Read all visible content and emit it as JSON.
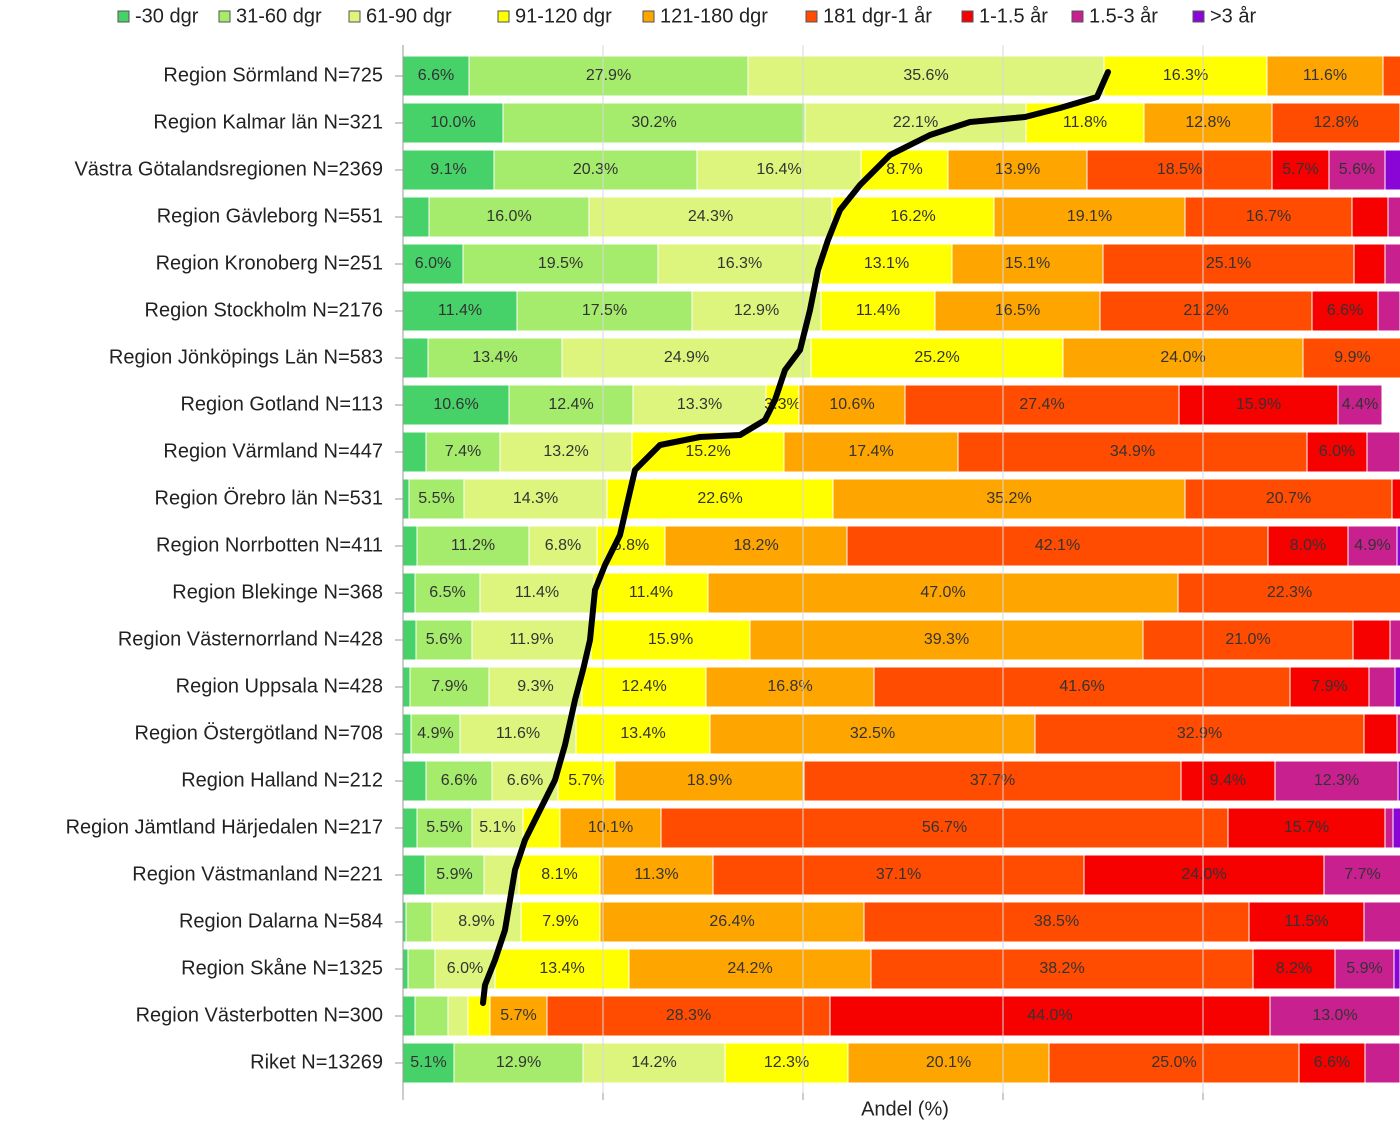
{
  "chart_data": {
    "type": "stacked-bar-horizontal",
    "x_label": "Andel (%)",
    "xlim": [
      0,
      100
    ],
    "xticks": [
      0,
      20,
      40,
      60,
      80,
      100
    ],
    "grid": true,
    "legend": "top",
    "categories": [
      "Region Sörmland N=725",
      "Region Kalmar län N=321",
      "Västra Götalandsregionen N=2369",
      "Region Gävleborg N=551",
      "Region Kronoberg N=251",
      "Region Stockholm N=2176",
      "Region Jönköpings Län N=583",
      "Region Gotland N=113",
      "Region Värmland N=447",
      "Region Örebro län N=531",
      "Region Norrbotten N=411",
      "Region Blekinge N=368",
      "Region Västernorrland N=428",
      "Region Uppsala N=428",
      "Region Östergötland N=708",
      "Region Halland N=212",
      "Region Jämtland Härjedalen N=217",
      "Region Västmanland N=221",
      "Region Dalarna N=584",
      "Region Skåne N=1325",
      "Region Västerbotten N=300",
      "Riket N=13269"
    ],
    "series": [
      {
        "name": "-30 dgr",
        "color": "#46d268",
        "values": [
          6.6,
          10.0,
          9.1,
          2.6,
          6.0,
          11.4,
          2.5,
          10.6,
          2.3,
          0.6,
          1.4,
          1.2,
          1.3,
          0.7,
          0.8,
          2.3,
          1.4,
          2.2,
          0.3,
          0.5,
          1.2,
          5.1
        ],
        "value_labels": [
          "6.6%",
          "10.0%",
          "9.1%",
          null,
          "6.0%",
          "11.4%",
          null,
          "10.6%",
          null,
          null,
          null,
          null,
          null,
          null,
          null,
          null,
          null,
          null,
          null,
          null,
          null,
          "5.1%"
        ]
      },
      {
        "name": "31-60 dgr",
        "color": "#a5ec6c",
        "values": [
          27.9,
          30.2,
          20.3,
          16.0,
          19.5,
          17.5,
          13.4,
          12.4,
          7.4,
          5.5,
          11.2,
          6.5,
          5.6,
          7.9,
          4.9,
          6.6,
          5.5,
          5.9,
          2.6,
          2.7,
          3.3,
          12.9
        ],
        "value_labels": [
          "27.9%",
          "30.2%",
          "20.3%",
          "16.0%",
          "19.5%",
          "17.5%",
          "13.4%",
          "12.4%",
          "7.4%",
          "5.5%",
          "11.2%",
          "6.5%",
          "5.6%",
          "7.9%",
          "4.9%",
          "6.6%",
          "5.5%",
          "5.9%",
          null,
          null,
          null,
          "12.9%"
        ]
      },
      {
        "name": "61-90 dgr",
        "color": "#ddf57c",
        "values": [
          35.6,
          22.1,
          16.4,
          24.3,
          16.3,
          12.9,
          24.9,
          13.3,
          13.2,
          14.3,
          6.8,
          11.4,
          11.9,
          9.3,
          11.6,
          6.6,
          5.1,
          3.5,
          8.9,
          6.0,
          2.0,
          14.2
        ],
        "value_labels": [
          "35.6%",
          "22.1%",
          "16.4%",
          "24.3%",
          "16.3%",
          "12.9%",
          "24.9%",
          "13.3%",
          "13.2%",
          "14.3%",
          "6.8%",
          "11.4%",
          "11.9%",
          "9.3%",
          "11.6%",
          "6.6%",
          "5.1%",
          null,
          "8.9%",
          "6.0%",
          null,
          "14.2%"
        ]
      },
      {
        "name": "91-120 dgr",
        "color": "#ffff00",
        "values": [
          16.3,
          11.8,
          8.7,
          16.2,
          13.1,
          11.4,
          25.2,
          3.3,
          15.2,
          22.6,
          6.8,
          11.4,
          15.9,
          12.4,
          13.4,
          5.7,
          3.7,
          8.1,
          7.9,
          13.4,
          2.2,
          12.3
        ],
        "value_labels": [
          "16.3%",
          "11.8%",
          "8.7%",
          "16.2%",
          "13.1%",
          "11.4%",
          "25.2%",
          "3.3%",
          "15.2%",
          "22.6%",
          "6.8%",
          "11.4%",
          "15.9%",
          "12.4%",
          "13.4%",
          "5.7%",
          null,
          "8.1%",
          "7.9%",
          "13.4%",
          null,
          "12.3%"
        ]
      },
      {
        "name": "121-180 dgr",
        "color": "#ffa500",
        "values": [
          11.6,
          12.8,
          13.9,
          19.1,
          15.1,
          16.5,
          24.0,
          10.6,
          17.4,
          35.2,
          18.2,
          47.0,
          39.3,
          16.8,
          32.5,
          18.9,
          10.1,
          11.3,
          26.4,
          24.2,
          5.7,
          20.1
        ],
        "value_labels": [
          "11.6%",
          "12.8%",
          "13.9%",
          "19.1%",
          "15.1%",
          "16.5%",
          "24.0%",
          "10.6%",
          "17.4%",
          "35.2%",
          "18.2%",
          "47.0%",
          "39.3%",
          "16.8%",
          "32.5%",
          "18.9%",
          "10.1%",
          "11.3%",
          "26.4%",
          "24.2%",
          "5.7%",
          "20.1%"
        ]
      },
      {
        "name": "181 dgr-1 år",
        "color": "#ff4c00",
        "values": [
          2.0,
          12.8,
          18.5,
          16.7,
          25.1,
          21.2,
          9.9,
          27.4,
          34.9,
          20.7,
          42.1,
          22.3,
          21.0,
          41.6,
          32.9,
          37.7,
          56.7,
          37.1,
          38.5,
          38.2,
          28.3,
          25.0
        ],
        "value_labels": [
          null,
          "12.8%",
          "18.5%",
          "16.7%",
          "25.1%",
          "21.2%",
          "9.9%",
          "27.4%",
          "34.9%",
          "20.7%",
          "42.1%",
          "22.3%",
          "21.0%",
          "41.6%",
          "32.9%",
          "37.7%",
          "56.7%",
          "37.1%",
          "38.5%",
          "38.2%",
          "28.3%",
          "25.0%"
        ]
      },
      {
        "name": "1-1.5 år",
        "color": "#f60000",
        "values": [
          0,
          0.3,
          5.7,
          3.6,
          3.1,
          6.6,
          0.1,
          15.9,
          6.0,
          1.1,
          8.0,
          0.2,
          3.7,
          7.9,
          3.3,
          9.4,
          15.7,
          24.0,
          11.5,
          8.2,
          44.0,
          6.6
        ],
        "value_labels": [
          null,
          null,
          "5.7%",
          null,
          null,
          "6.6%",
          null,
          "15.9%",
          "6.0%",
          null,
          "8.0%",
          null,
          null,
          "7.9%",
          null,
          "9.4%",
          "15.7%",
          "24.0%",
          "11.5%",
          "8.2%",
          "44.0%",
          "6.6%"
        ]
      },
      {
        "name": "1.5-3 år",
        "color": "#c8208e",
        "values": [
          0,
          0,
          5.6,
          1.5,
          1.8,
          2.2,
          0,
          4.4,
          3.3,
          0,
          4.9,
          0,
          1.3,
          2.6,
          0.6,
          12.3,
          0.8,
          7.7,
          3.8,
          5.9,
          13.0,
          3.5
        ],
        "value_labels": [
          null,
          null,
          "5.6%",
          null,
          null,
          null,
          null,
          "4.4%",
          null,
          null,
          "4.9%",
          null,
          null,
          null,
          null,
          "12.3%",
          null,
          "7.7%",
          null,
          "5.9%",
          "13.0%",
          null
        ]
      },
      {
        "name": ">3 år",
        "color": "#8a06d6",
        "values": [
          0,
          0,
          1.8,
          0,
          0,
          0.3,
          0,
          0,
          0.3,
          0,
          0.6,
          0,
          0,
          0.8,
          0,
          0.5,
          1.0,
          0.2,
          0.1,
          0.6,
          0.3,
          0.3
        ],
        "value_labels": [
          null,
          null,
          null,
          null,
          null,
          null,
          null,
          null,
          null,
          null,
          null,
          null,
          null,
          null,
          null,
          null,
          null,
          null,
          null,
          null,
          null,
          null
        ]
      }
    ]
  }
}
